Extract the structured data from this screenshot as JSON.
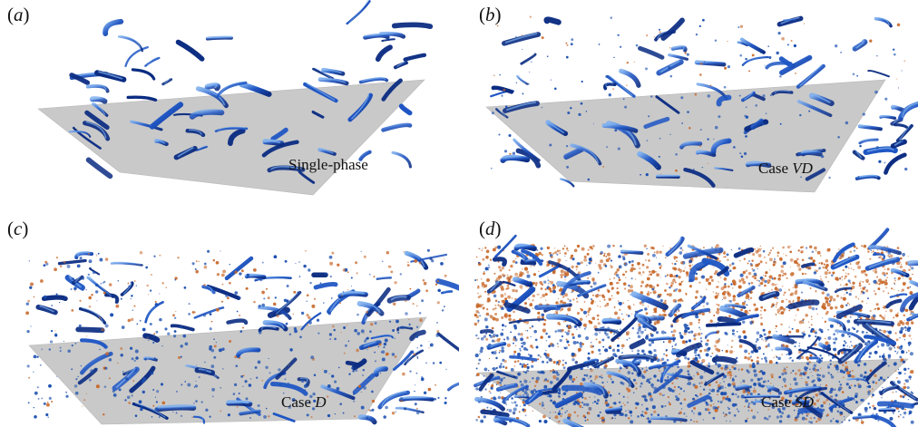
{
  "figure": {
    "panels": [
      {
        "id": "a",
        "letter": "a",
        "label_prefix": "",
        "label_italic": "",
        "label": "Single-phase",
        "particles": "none",
        "density": 1.0
      },
      {
        "id": "b",
        "letter": "b",
        "label_prefix": "Case ",
        "label_italic": "VD",
        "label": "",
        "particles": "sparse",
        "density": 1.25
      },
      {
        "id": "c",
        "letter": "c",
        "label_prefix": "Case ",
        "label_italic": "D",
        "label": "",
        "particles": "moderate",
        "density": 1.35
      },
      {
        "id": "d",
        "letter": "d",
        "label_prefix": "Case ",
        "label_italic": "SD",
        "label": "",
        "particles": "dense",
        "density": 2.6
      }
    ],
    "colors": {
      "wall": "#c9c9c9",
      "vortex_dark": "#0b2c82",
      "vortex_mid": "#1f56c4",
      "vortex_light": "#7fb0ee",
      "particle_orange": "#c8692b",
      "particle_blue": "#1b4fb0"
    }
  }
}
